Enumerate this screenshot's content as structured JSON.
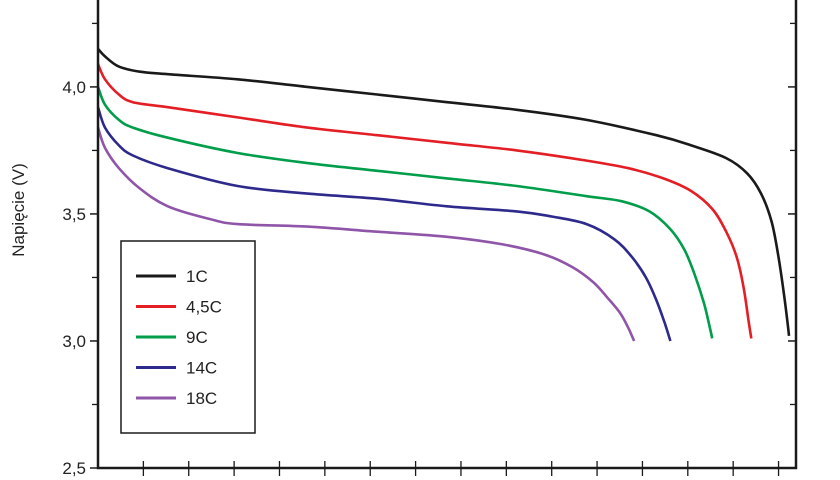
{
  "chart_data": {
    "type": "line",
    "ylabel": "Napięcie (V)",
    "ylim": [
      2.5,
      4.35
    ],
    "yticks": [
      {
        "value": 2.5,
        "label": "2,5"
      },
      {
        "value": 3.0,
        "label": "3,0"
      },
      {
        "value": 3.5,
        "label": "3,5"
      },
      {
        "value": 4.0,
        "label": "4,0"
      }
    ],
    "y_minor_ticks": [
      2.75,
      3.25,
      3.75,
      4.25
    ],
    "xlim": [
      0,
      100
    ],
    "x_minor_ticks": [
      6.5,
      13,
      19.5,
      26,
      32.5,
      39,
      45.5,
      52,
      58.5,
      65,
      71.5,
      78,
      84.5,
      91,
      97.5
    ],
    "grid": false,
    "legend_position": "bottom-left",
    "series": [
      {
        "name": "1C",
        "color": "#1a1a1a",
        "x": [
          0,
          1,
          3,
          6,
          10,
          20,
          30,
          40,
          50,
          60,
          70,
          80,
          85,
          90,
          93,
          95,
          96.5,
          97.5,
          98.3,
          98.8,
          99
        ],
        "y": [
          4.15,
          4.12,
          4.08,
          4.06,
          4.05,
          4.03,
          4.0,
          3.97,
          3.94,
          3.91,
          3.87,
          3.81,
          3.77,
          3.72,
          3.66,
          3.58,
          3.47,
          3.33,
          3.18,
          3.07,
          3.02
        ]
      },
      {
        "name": "4,5C",
        "color": "#e31e24",
        "x": [
          0,
          1,
          3,
          5,
          10,
          20,
          30,
          40,
          50,
          60,
          70,
          76,
          81,
          85,
          88,
          90,
          91.5,
          92.5,
          93.2,
          93.6
        ],
        "y": [
          4.09,
          4.03,
          3.97,
          3.94,
          3.92,
          3.88,
          3.84,
          3.81,
          3.78,
          3.75,
          3.71,
          3.68,
          3.64,
          3.59,
          3.52,
          3.43,
          3.33,
          3.21,
          3.08,
          3.01
        ]
      },
      {
        "name": "9C",
        "color": "#009d4a",
        "x": [
          0,
          1,
          3,
          5,
          10,
          20,
          30,
          40,
          50,
          60,
          70,
          75,
          79,
          82,
          84,
          85.5,
          86.8,
          87.6,
          88
        ],
        "y": [
          4.0,
          3.93,
          3.87,
          3.84,
          3.8,
          3.74,
          3.7,
          3.67,
          3.64,
          3.61,
          3.57,
          3.55,
          3.51,
          3.44,
          3.36,
          3.26,
          3.15,
          3.06,
          3.01
        ]
      },
      {
        "name": "14C",
        "color": "#2e2a8c",
        "x": [
          0,
          1,
          3,
          5,
          10,
          20,
          30,
          40,
          50,
          60,
          65,
          70,
          74,
          76.5,
          78.5,
          80,
          81.2,
          82
        ],
        "y": [
          3.92,
          3.84,
          3.77,
          3.73,
          3.68,
          3.61,
          3.58,
          3.56,
          3.53,
          3.51,
          3.49,
          3.46,
          3.4,
          3.33,
          3.25,
          3.16,
          3.07,
          3.0
        ]
      },
      {
        "name": "18C",
        "color": "#8f55a8",
        "x": [
          0,
          1,
          3,
          6,
          10,
          16,
          20,
          30,
          40,
          50,
          58,
          64,
          68,
          71,
          73,
          74.8,
          76,
          76.8
        ],
        "y": [
          3.84,
          3.76,
          3.68,
          3.6,
          3.53,
          3.48,
          3.46,
          3.45,
          3.43,
          3.41,
          3.38,
          3.34,
          3.29,
          3.23,
          3.17,
          3.11,
          3.05,
          3.0
        ]
      }
    ]
  }
}
